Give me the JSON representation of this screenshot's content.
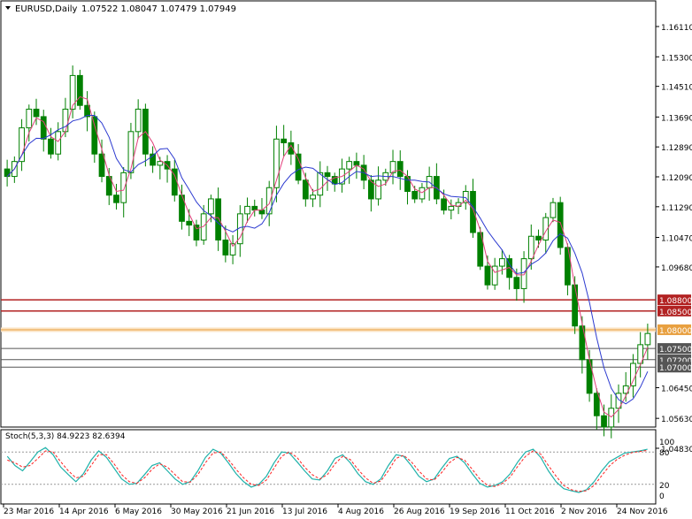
{
  "header": {
    "symbol": "EURUSD,Daily",
    "ohlc": "1.07522 1.08047 1.07479 1.07949"
  },
  "chart_data": [
    {
      "type": "candlestick",
      "name": "EURUSD,Daily",
      "y_ticks": [
        "1.16110",
        "1.15300",
        "1.14510",
        "1.13690",
        "1.12890",
        "1.12090",
        "1.11290",
        "1.10470",
        "1.09680",
        "1.08800",
        "1.08500",
        "1.08000",
        "1.07500",
        "1.07200",
        "1.07000",
        "1.06450",
        "1.05630",
        "1.04830"
      ],
      "ylim": [
        1.0483,
        1.1611
      ],
      "price_lines": [
        {
          "label": "1.08800",
          "value": 1.088,
          "color": "#b22222"
        },
        {
          "label": "1.08500",
          "value": 1.085,
          "color": "#b22222"
        },
        {
          "label": "1.08000",
          "value": 1.08,
          "color": "#e8a040"
        },
        {
          "label": "1.07500",
          "value": 1.075,
          "color": "#555555"
        },
        {
          "label": "1.07200",
          "value": 1.072,
          "color": "#555555"
        },
        {
          "label": "1.07000",
          "value": 1.07,
          "color": "#555555"
        }
      ],
      "x_labels": [
        "23 Mar 2016",
        "14 Apr 2016",
        "6 May 2016",
        "30 May 2016",
        "21 Jun 2016",
        "13 Jul 2016",
        "4 Aug 2016",
        "26 Aug 2016",
        "19 Sep 2016",
        "11 Oct 2016",
        "2 Nov 2016",
        "24 Nov 2016"
      ],
      "close_path": [
        1.121,
        1.125,
        1.134,
        1.139,
        1.137,
        1.131,
        1.127,
        1.133,
        1.139,
        1.148,
        1.14,
        1.137,
        1.127,
        1.121,
        1.116,
        1.114,
        1.122,
        1.133,
        1.139,
        1.127,
        1.124,
        1.125,
        1.123,
        1.116,
        1.109,
        1.108,
        1.104,
        1.111,
        1.115,
        1.104,
        1.1,
        1.103,
        1.111,
        1.113,
        1.112,
        1.111,
        1.118,
        1.131,
        1.13,
        1.127,
        1.12,
        1.115,
        1.116,
        1.122,
        1.121,
        1.119,
        1.123,
        1.125,
        1.124,
        1.12,
        1.115,
        1.12,
        1.122,
        1.125,
        1.121,
        1.117,
        1.115,
        1.118,
        1.121,
        1.115,
        1.112,
        1.113,
        1.114,
        1.117,
        1.106,
        1.097,
        1.092,
        1.097,
        1.099,
        1.094,
        1.091,
        1.099,
        1.105,
        1.104,
        1.11,
        1.114,
        1.102,
        1.092,
        1.081,
        1.072,
        1.063,
        1.057,
        1.054,
        1.059,
        1.063,
        1.065,
        1.071,
        1.076,
        1.079
      ],
      "moving_averages": [
        {
          "name": "MA fast",
          "color": "#e0407a"
        },
        {
          "name": "MA slow",
          "color": "#2c3ad0"
        }
      ]
    },
    {
      "type": "line",
      "name": "Stoch(5,3,3)",
      "values_label": "Stoch(5,3,3) 84.9223 82.6394",
      "y_ticks": [
        "100",
        "80",
        "20",
        "0"
      ],
      "ylim": [
        0,
        100
      ],
      "levels": [
        80,
        20
      ],
      "main_line_color": "#20b2aa",
      "signal_line_color": "#ff2020",
      "main": [
        72,
        55,
        45,
        62,
        80,
        88,
        75,
        52,
        38,
        25,
        40,
        65,
        82,
        70,
        50,
        30,
        20,
        22,
        38,
        55,
        60,
        45,
        30,
        20,
        25,
        45,
        70,
        85,
        78,
        60,
        40,
        25,
        15,
        20,
        35,
        60,
        80,
        78,
        62,
        45,
        30,
        28,
        45,
        68,
        75,
        60,
        40,
        25,
        20,
        30,
        55,
        75,
        72,
        55,
        35,
        25,
        30,
        50,
        68,
        72,
        60,
        40,
        22,
        15,
        18,
        25,
        40,
        62,
        80,
        85,
        70,
        45,
        25,
        12,
        8,
        5,
        10,
        25,
        45,
        62,
        70,
        78,
        80,
        82,
        85
      ],
      "signal": [
        65,
        60,
        52,
        55,
        68,
        82,
        80,
        62,
        45,
        32,
        35,
        55,
        75,
        75,
        58,
        38,
        25,
        22,
        32,
        48,
        58,
        52,
        38,
        25,
        24,
        38,
        60,
        78,
        80,
        66,
        48,
        32,
        20,
        18,
        28,
        50,
        72,
        80,
        70,
        52,
        38,
        30,
        38,
        58,
        72,
        66,
        48,
        32,
        22,
        26,
        45,
        68,
        74,
        62,
        45,
        30,
        28,
        42,
        60,
        70,
        65,
        48,
        30,
        18,
        16,
        22,
        34,
        54,
        72,
        82,
        76,
        55,
        35,
        18,
        10,
        7,
        8,
        18,
        36,
        54,
        66,
        74,
        79,
        81,
        83
      ]
    }
  ]
}
